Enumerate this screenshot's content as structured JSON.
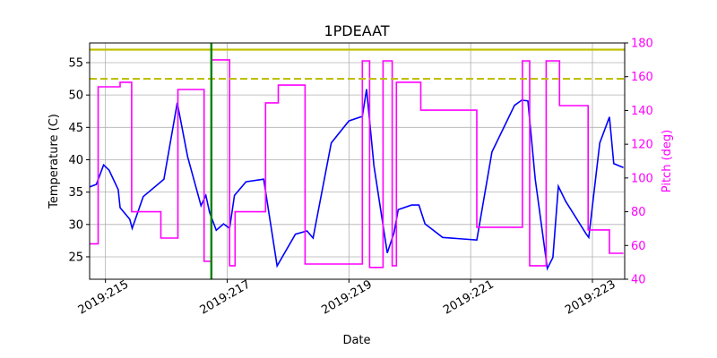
{
  "chart_data": {
    "type": "line",
    "title": "1PDEAAT",
    "x_label": "Date",
    "y_label": "Temperature (C)",
    "y2_label": "Pitch (deg)",
    "y2_color": "#ff00ff",
    "grid": true,
    "xlim": [
      214.74,
      223.53
    ],
    "xticks": [
      {
        "value": 215,
        "label": "2019:215"
      },
      {
        "value": 217,
        "label": "2019:217"
      },
      {
        "value": 219,
        "label": "2019:219"
      },
      {
        "value": 221,
        "label": "2019:221"
      },
      {
        "value": 223,
        "label": "2019:223"
      }
    ],
    "ylim": [
      21.54,
      58.04
    ],
    "yticks": [
      25,
      30,
      35,
      40,
      45,
      50,
      55
    ],
    "y2lim": [
      40,
      180
    ],
    "y2ticks": [
      40,
      60,
      80,
      100,
      120,
      140,
      160,
      180
    ],
    "hlines": [
      {
        "value": 57,
        "color": "#bfbf00",
        "style": "solid"
      },
      {
        "value": 52.5,
        "color": "#bfbf00",
        "style": "dashed"
      }
    ],
    "vlines": [
      {
        "value": 216.74,
        "color": "#008000"
      }
    ],
    "series": [
      {
        "color": "#0000ff",
        "axis": "y",
        "x": [
          214.74,
          214.85,
          214.97,
          215.06,
          215.21,
          215.24,
          215.4,
          215.44,
          215.62,
          215.91,
          215.96,
          216.18,
          216.35,
          216.57,
          216.65,
          216.71,
          216.82,
          216.94,
          217.04,
          217.12,
          217.31,
          217.6,
          217.82,
          218.12,
          218.31,
          218.41,
          218.71,
          219.0,
          219.22,
          219.29,
          219.41,
          219.63,
          219.74,
          219.81,
          220.03,
          220.15,
          220.25,
          220.54,
          221.1,
          221.35,
          221.72,
          221.84,
          221.94,
          222.06,
          222.26,
          222.35,
          222.44,
          222.56,
          222.9,
          222.94,
          223.12,
          223.28,
          223.35,
          223.51
        ],
        "values": [
          35.8,
          36.2,
          39.2,
          38.4,
          35.4,
          32.6,
          30.8,
          29.4,
          34.3,
          36.6,
          37.0,
          48.8,
          40.5,
          32.9,
          34.5,
          31.9,
          29.1,
          30.1,
          29.4,
          34.5,
          36.6,
          37.0,
          23.6,
          28.5,
          29.0,
          27.9,
          42.6,
          46.0,
          46.7,
          50.9,
          39.1,
          25.6,
          28.7,
          32.3,
          33.0,
          33.0,
          30.1,
          28.0,
          27.6,
          41.2,
          48.4,
          49.2,
          49.1,
          37.0,
          23.2,
          24.9,
          35.9,
          33.6,
          28.5,
          28.0,
          42.6,
          46.6,
          39.4,
          38.8
        ]
      },
      {
        "color": "#ff00ff",
        "axis": "y2",
        "x": [
          214.74,
          214.88,
          214.88,
          215.24,
          215.24,
          215.43,
          215.43,
          215.91,
          215.91,
          216.19,
          216.19,
          216.62,
          216.62,
          216.74,
          216.74,
          217.04,
          217.04,
          217.13,
          217.13,
          217.63,
          217.63,
          217.84,
          217.84,
          218.28,
          218.28,
          219.22,
          219.22,
          219.34,
          219.34,
          219.56,
          219.56,
          219.71,
          219.71,
          219.78,
          219.78,
          220.18,
          220.18,
          221.1,
          221.1,
          221.85,
          221.85,
          221.97,
          221.97,
          222.24,
          222.24,
          222.46,
          222.46,
          222.93,
          222.93,
          223.28,
          223.28,
          223.51
        ],
        "values": [
          61,
          61,
          154,
          154,
          156.7,
          156.7,
          80,
          80,
          64.4,
          64.4,
          152.4,
          152.4,
          50.6,
          50.6,
          170,
          170,
          48,
          48,
          80,
          80,
          144.5,
          144.5,
          155,
          155,
          49,
          49,
          169.4,
          169.4,
          47,
          47,
          169.4,
          169.4,
          48,
          48,
          156.7,
          156.7,
          140.2,
          140.2,
          70.8,
          70.8,
          169.4,
          169.4,
          48,
          48,
          169.4,
          169.4,
          142.9,
          142.9,
          69.2,
          69.2,
          55.4,
          55.4
        ]
      }
    ]
  }
}
